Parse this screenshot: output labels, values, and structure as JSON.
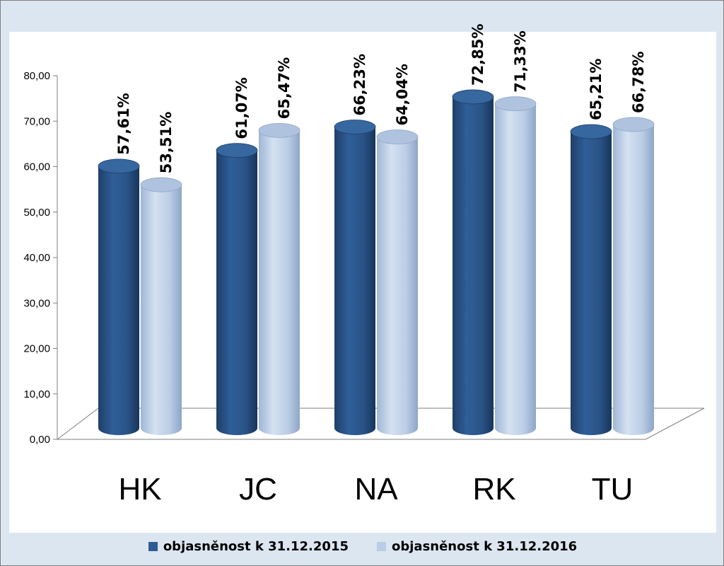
{
  "chart_data": {
    "type": "bar",
    "categories": [
      "HK",
      "JC",
      "NA",
      "RK",
      "TU"
    ],
    "series": [
      {
        "name": "objasněnost k 31.12.2015",
        "values": [
          57.61,
          61.07,
          66.23,
          72.85,
          65.21
        ],
        "labels": [
          "57,61%",
          "61,07%",
          "66,23%",
          "72,85%",
          "65,21%"
        ],
        "color": "#2e5b94"
      },
      {
        "name": "objasněnost k 31.12.2016",
        "values": [
          53.51,
          65.47,
          64.04,
          71.33,
          66.78
        ],
        "labels": [
          "53,51%",
          "65,47%",
          "64,04%",
          "71,33%",
          "66,78%"
        ],
        "color": "#b9cde6"
      }
    ],
    "y_ticks": [
      "0,00",
      "10,00",
      "20,00",
      "30,00",
      "40,00",
      "50,00",
      "60,00",
      "70,00",
      "80,00"
    ],
    "ylim": [
      0,
      80
    ],
    "title": "",
    "xlabel": "",
    "ylabel": "",
    "grid": false,
    "legend_position": "bottom"
  }
}
